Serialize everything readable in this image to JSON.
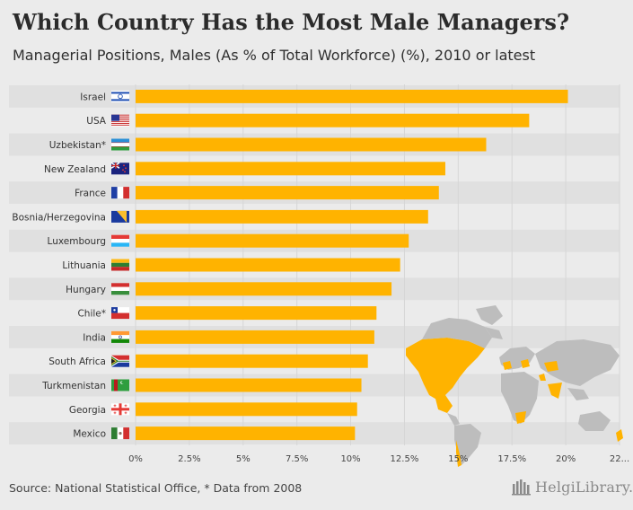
{
  "header": {
    "title": "Which Country Has the Most Male Managers?",
    "subtitle": "Managerial Positions, Males (As % of Total Workforce) (%), 2010 or latest"
  },
  "footer": {
    "source": "Source: National Statistical Office, * Data from 2008",
    "brand": "HelgiLibrary."
  },
  "colors": {
    "bar": "#ffb300",
    "background": "#ebebeb",
    "row_band": "#e0e0e0",
    "map_land": "#bdbdbd",
    "map_highlight": "#ffb300"
  },
  "chart_data": {
    "type": "bar",
    "orientation": "horizontal",
    "title": "Which Country Has the Most Male Managers?",
    "subtitle": "Managerial Positions, Males (As % of Total Workforce) (%), 2010 or latest",
    "categories": [
      "Israel",
      "USA",
      "Uzbekistan*",
      "New Zealand",
      "France",
      "Bosnia/Herzegovina",
      "Luxembourg",
      "Lithuania",
      "Hungary",
      "Chile*",
      "India",
      "South Africa",
      "Turkmenistan",
      "Georgia",
      "Mexico"
    ],
    "flags": [
      "flag-israel-icon",
      "flag-usa-icon",
      "flag-uzbekistan-icon",
      "flag-new-zealand-icon",
      "flag-france-icon",
      "flag-bosnia-herzegovina-icon",
      "flag-luxembourg-icon",
      "flag-lithuania-icon",
      "flag-hungary-icon",
      "flag-chile-icon",
      "flag-india-icon",
      "flag-south-africa-icon",
      "flag-turkmenistan-icon",
      "flag-georgia-icon",
      "flag-mexico-icon"
    ],
    "values": [
      20.1,
      18.3,
      16.3,
      14.4,
      14.1,
      13.6,
      12.7,
      12.3,
      11.9,
      11.2,
      11.1,
      10.8,
      10.5,
      10.3,
      10.2
    ],
    "xlim": [
      0,
      22.5
    ],
    "ticks": [
      0,
      2.5,
      5,
      7.5,
      10,
      12.5,
      15,
      17.5,
      20,
      22.5
    ],
    "tick_labels": [
      "0%",
      "2.5%",
      "5%",
      "7.5%",
      "10%",
      "12.5%",
      "15%",
      "17.5%",
      "20%",
      "22..."
    ],
    "xlabel": "",
    "ylabel": ""
  }
}
